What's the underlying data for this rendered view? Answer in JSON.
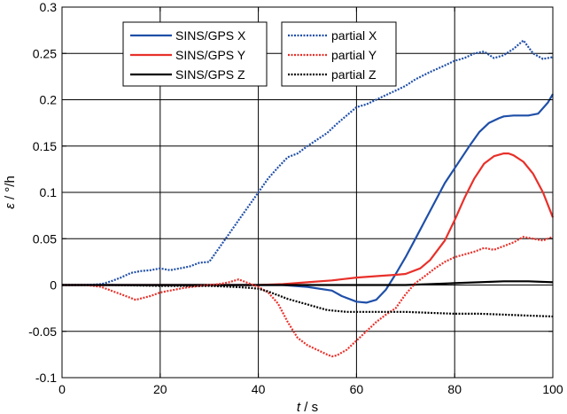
{
  "chart_data": {
    "type": "line",
    "xlabel_var": "t",
    "xlabel_unit": " / s",
    "ylabel_var": "ε",
    "ylabel_unit": " / °/h",
    "xlim": [
      0,
      100
    ],
    "ylim": [
      -0.1,
      0.3
    ],
    "xticks": [
      0,
      20,
      40,
      60,
      80,
      100
    ],
    "xtick_labels": [
      "0",
      "20",
      "40",
      "60",
      "80",
      "100"
    ],
    "yticks": [
      -0.1,
      -0.05,
      0,
      0.05,
      0.1,
      0.15,
      0.2,
      0.25,
      0.3
    ],
    "ytick_labels": [
      "-0.1",
      "-0.05",
      "0",
      "0.05",
      "0.1",
      "0.15",
      "0.2",
      "0.25",
      "0.3"
    ],
    "grid": true,
    "legend_position": "top",
    "series": [
      {
        "name": "SINS/GPS X",
        "color": "#1f4fa8",
        "style": "solid",
        "x": [
          0,
          10,
          20,
          30,
          40,
          45,
          50,
          55,
          57,
          60,
          62,
          64,
          66,
          68,
          70,
          72,
          75,
          78,
          80,
          83,
          85,
          87,
          89,
          90,
          92,
          95,
          97,
          99,
          100
        ],
        "y": [
          0,
          0,
          0,
          0,
          0,
          0,
          -0.002,
          -0.006,
          -0.012,
          -0.018,
          -0.019,
          -0.016,
          -0.005,
          0.012,
          0.03,
          0.05,
          0.08,
          0.11,
          0.126,
          0.15,
          0.165,
          0.175,
          0.18,
          0.182,
          0.183,
          0.183,
          0.185,
          0.197,
          0.206
        ]
      },
      {
        "name": "SINS/GPS Y",
        "color": "#e8302a",
        "style": "solid",
        "x": [
          0,
          10,
          20,
          30,
          40,
          45,
          50,
          55,
          60,
          65,
          68,
          70,
          73,
          75,
          78,
          80,
          82,
          84,
          86,
          88,
          90,
          91,
          92,
          94,
          96,
          98,
          100
        ],
        "y": [
          0,
          0,
          0,
          0,
          0,
          0.001,
          0.003,
          0.005,
          0.008,
          0.01,
          0.011,
          0.012,
          0.018,
          0.027,
          0.048,
          0.07,
          0.094,
          0.115,
          0.131,
          0.139,
          0.142,
          0.142,
          0.14,
          0.133,
          0.12,
          0.1,
          0.073
        ]
      },
      {
        "name": "SINS/GPS Z",
        "color": "#000000",
        "style": "solid",
        "x": [
          0,
          20,
          40,
          60,
          70,
          75,
          80,
          85,
          90,
          95,
          100
        ],
        "y": [
          0,
          0,
          0,
          0,
          0,
          0.001,
          0.002,
          0.003,
          0.004,
          0.004,
          0.003
        ]
      },
      {
        "name": "partial X",
        "color": "#1f4fa8",
        "style": "dotted",
        "x": [
          0,
          5,
          8,
          10,
          12,
          14,
          16,
          18,
          20,
          22,
          24,
          26,
          28,
          30,
          32,
          34,
          36,
          38,
          40,
          42,
          44,
          46,
          48,
          50,
          52,
          54,
          56,
          58,
          60,
          62,
          64,
          66,
          68,
          70,
          72,
          75,
          78,
          80,
          82,
          84,
          86,
          88,
          90,
          92,
          94,
          96,
          98,
          100
        ],
        "y": [
          0,
          0,
          0.001,
          0.004,
          0.008,
          0.013,
          0.015,
          0.016,
          0.018,
          0.016,
          0.018,
          0.02,
          0.024,
          0.025,
          0.04,
          0.055,
          0.07,
          0.085,
          0.1,
          0.115,
          0.127,
          0.138,
          0.142,
          0.15,
          0.157,
          0.164,
          0.174,
          0.183,
          0.192,
          0.195,
          0.2,
          0.205,
          0.21,
          0.215,
          0.222,
          0.23,
          0.237,
          0.242,
          0.245,
          0.25,
          0.252,
          0.245,
          0.248,
          0.255,
          0.264,
          0.25,
          0.244,
          0.246
        ]
      },
      {
        "name": "partial Y",
        "color": "#e8302a",
        "style": "dotted",
        "x": [
          0,
          5,
          8,
          10,
          12,
          15,
          18,
          20,
          22,
          25,
          28,
          30,
          32,
          34,
          36,
          38,
          40,
          42,
          44,
          46,
          48,
          50,
          52,
          54,
          55,
          56,
          58,
          60,
          62,
          64,
          66,
          68,
          70,
          72,
          74,
          76,
          78,
          80,
          82,
          84,
          86,
          88,
          90,
          92,
          94,
          96,
          98,
          100
        ],
        "y": [
          0,
          0,
          -0.002,
          -0.006,
          -0.01,
          -0.016,
          -0.012,
          -0.008,
          -0.006,
          -0.003,
          -0.001,
          0,
          0.001,
          0.003,
          0.006,
          0.002,
          -0.002,
          -0.008,
          -0.02,
          -0.04,
          -0.057,
          -0.065,
          -0.07,
          -0.075,
          -0.077,
          -0.076,
          -0.07,
          -0.06,
          -0.05,
          -0.04,
          -0.032,
          -0.025,
          -0.01,
          0.002,
          0.01,
          0.018,
          0.025,
          0.03,
          0.033,
          0.036,
          0.04,
          0.038,
          0.042,
          0.046,
          0.052,
          0.05,
          0.048,
          0.052
        ]
      },
      {
        "name": "partial Z",
        "color": "#000000",
        "style": "dotted",
        "x": [
          0,
          10,
          20,
          30,
          35,
          38,
          40,
          42,
          44,
          46,
          48,
          50,
          52,
          54,
          56,
          58,
          60,
          65,
          70,
          75,
          80,
          85,
          90,
          95,
          100
        ],
        "y": [
          0,
          0,
          -0.001,
          -0.001,
          -0.002,
          -0.003,
          -0.004,
          -0.007,
          -0.011,
          -0.015,
          -0.018,
          -0.021,
          -0.024,
          -0.027,
          -0.028,
          -0.029,
          -0.029,
          -0.029,
          -0.029,
          -0.03,
          -0.031,
          -0.031,
          -0.032,
          -0.033,
          -0.034
        ]
      }
    ]
  }
}
